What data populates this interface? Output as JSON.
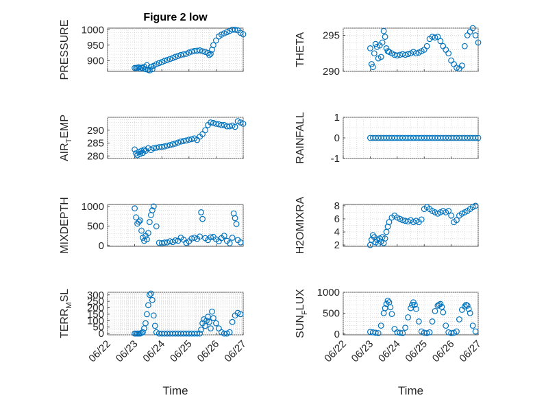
{
  "figure": {
    "title": "Figure 2 low",
    "marker_color": "#0072BD"
  },
  "chart_data": [
    {
      "type": "scatter",
      "ylabel": "PRESSURE",
      "title": "Figure 2 low",
      "xlim": [
        22,
        27
      ],
      "ylim": [
        865,
        1005
      ],
      "yticks": [
        900,
        950,
        1000
      ],
      "x": [
        23.0,
        23.05,
        23.1,
        23.15,
        23.2,
        23.25,
        23.3,
        23.35,
        23.4,
        23.45,
        23.5,
        23.55,
        23.6,
        23.65,
        23.7,
        23.8,
        23.9,
        24.0,
        24.1,
        24.2,
        24.3,
        24.4,
        24.5,
        24.6,
        24.7,
        24.8,
        24.9,
        25.0,
        25.1,
        25.2,
        25.3,
        25.4,
        25.5,
        25.6,
        25.7,
        25.75,
        25.8,
        25.85,
        25.9,
        26.0,
        26.1,
        26.2,
        26.3,
        26.4,
        26.5,
        26.6,
        26.7,
        26.8,
        26.9,
        27.0
      ],
      "values": [
        876,
        876,
        877,
        878,
        874,
        877,
        876,
        880,
        872,
        885,
        870,
        868,
        880,
        872,
        883,
        888,
        892,
        895,
        899,
        902,
        905,
        908,
        912,
        915,
        918,
        920,
        922,
        926,
        929,
        931,
        932,
        933,
        930,
        928,
        925,
        918,
        922,
        935,
        950,
        965,
        978,
        984,
        988,
        992,
        996,
        1000,
        1000,
        998,
        990,
        985
      ]
    },
    {
      "type": "scatter",
      "ylabel": "THETA",
      "xlim": [
        22,
        27
      ],
      "ylim": [
        290,
        296
      ],
      "yticks": [
        290,
        295
      ],
      "x": [
        23.0,
        23.05,
        23.1,
        23.15,
        23.2,
        23.25,
        23.3,
        23.35,
        23.4,
        23.45,
        23.5,
        23.55,
        23.6,
        23.65,
        23.7,
        23.8,
        23.9,
        24.0,
        24.1,
        24.2,
        24.3,
        24.4,
        24.5,
        24.6,
        24.7,
        24.8,
        24.9,
        25.0,
        25.1,
        25.2,
        25.3,
        25.4,
        25.5,
        25.6,
        25.7,
        25.8,
        25.9,
        26.0,
        26.1,
        26.2,
        26.3,
        26.4,
        26.5,
        26.6,
        26.7,
        26.8,
        26.9,
        27.0
      ],
      "values": [
        293.2,
        291.0,
        290.6,
        292.5,
        293.8,
        293.4,
        291.8,
        293.6,
        292.0,
        294.0,
        295.6,
        294.8,
        293.2,
        292.8,
        292.7,
        292.5,
        292.3,
        292.2,
        292.3,
        292.4,
        292.3,
        292.4,
        292.5,
        292.7,
        292.5,
        292.6,
        292.8,
        293.0,
        293.5,
        294.5,
        294.8,
        294.7,
        294.8,
        294.2,
        293.5,
        293.0,
        292.5,
        291.5,
        291.0,
        290.5,
        290.4,
        290.8,
        293.5,
        295.0,
        295.5,
        296.0,
        295.0,
        294.0
      ]
    },
    {
      "type": "scatter",
      "ylabel": "AIR_TEMP",
      "xlim": [
        22,
        27
      ],
      "ylim": [
        279,
        295
      ],
      "yticks": [
        280,
        285,
        290
      ],
      "x": [
        23.0,
        23.05,
        23.1,
        23.15,
        23.2,
        23.25,
        23.3,
        23.35,
        23.4,
        23.5,
        23.6,
        23.7,
        23.8,
        23.9,
        24.0,
        24.1,
        24.2,
        24.3,
        24.4,
        24.5,
        24.6,
        24.7,
        24.8,
        24.9,
        25.0,
        25.1,
        25.2,
        25.3,
        25.4,
        25.5,
        25.6,
        25.7,
        25.8,
        25.9,
        26.0,
        26.1,
        26.2,
        26.3,
        26.4,
        26.5,
        26.6,
        26.7,
        26.8,
        26.9,
        27.0
      ],
      "values": [
        282.5,
        281.0,
        280.3,
        281.5,
        280.8,
        282.0,
        281.2,
        282.5,
        282.0,
        283.0,
        282.3,
        283.0,
        283.2,
        283.4,
        283.5,
        283.7,
        284.0,
        284.2,
        284.5,
        284.8,
        285.2,
        285.6,
        285.8,
        286.0,
        286.3,
        286.5,
        286.8,
        286.2,
        287.5,
        288.5,
        290.0,
        292.0,
        293.0,
        292.8,
        292.5,
        292.3,
        292.0,
        292.0,
        291.5,
        291.5,
        291.8,
        291.3,
        293.5,
        293.0,
        292.5
      ]
    },
    {
      "type": "scatter",
      "ylabel": "RAINFALL",
      "xlim": [
        22,
        27
      ],
      "ylim": [
        -1,
        1
      ],
      "yticks": [
        -1,
        0,
        1
      ],
      "x": [
        23.0,
        23.1,
        23.2,
        23.3,
        23.4,
        23.5,
        23.6,
        23.7,
        23.8,
        23.9,
        24.0,
        24.1,
        24.2,
        24.3,
        24.4,
        24.5,
        24.6,
        24.7,
        24.8,
        24.9,
        25.0,
        25.1,
        25.2,
        25.3,
        25.4,
        25.5,
        25.6,
        25.7,
        25.8,
        25.9,
        26.0,
        26.1,
        26.2,
        26.3,
        26.4,
        26.5,
        26.6,
        26.7,
        26.8,
        26.9,
        27.0
      ],
      "values": [
        0,
        0,
        0,
        0,
        0,
        0,
        0,
        0,
        0,
        0,
        0,
        0,
        0,
        0,
        0,
        0,
        0,
        0,
        0,
        0,
        0,
        0,
        0,
        0,
        0,
        0,
        0,
        0,
        0,
        0,
        0,
        0,
        0,
        0,
        0,
        0,
        0,
        0,
        0,
        0,
        0
      ]
    },
    {
      "type": "scatter",
      "ylabel": "MIXDEPTH",
      "xlim": [
        22,
        27
      ],
      "ylim": [
        -20,
        1050
      ],
      "yticks": [
        0,
        500,
        1000
      ],
      "x": [
        23.0,
        23.05,
        23.1,
        23.15,
        23.2,
        23.25,
        23.3,
        23.35,
        23.4,
        23.45,
        23.5,
        23.55,
        23.6,
        23.65,
        23.7,
        23.8,
        23.9,
        24.0,
        24.1,
        24.2,
        24.3,
        24.4,
        24.5,
        24.6,
        24.7,
        24.8,
        24.9,
        25.0,
        25.1,
        25.2,
        25.3,
        25.4,
        25.45,
        25.5,
        25.6,
        25.7,
        25.8,
        25.9,
        26.0,
        26.1,
        26.2,
        26.3,
        26.4,
        26.5,
        26.6,
        26.65,
        26.7,
        26.75,
        26.8,
        26.9
      ],
      "values": [
        950,
        720,
        560,
        610,
        640,
        380,
        200,
        120,
        250,
        160,
        320,
        600,
        780,
        900,
        1000,
        490,
        70,
        60,
        75,
        80,
        110,
        90,
        130,
        120,
        200,
        150,
        70,
        110,
        180,
        200,
        170,
        230,
        850,
        680,
        190,
        140,
        210,
        220,
        160,
        110,
        190,
        250,
        120,
        60,
        200,
        820,
        700,
        550,
        140,
        80
      ]
    },
    {
      "type": "scatter",
      "ylabel": "H2OMIXRA",
      "xlim": [
        22,
        27
      ],
      "ylim": [
        1.8,
        8.2
      ],
      "yticks": [
        2,
        4,
        6,
        8
      ],
      "x": [
        23.0,
        23.05,
        23.1,
        23.15,
        23.2,
        23.25,
        23.3,
        23.35,
        23.4,
        23.45,
        23.5,
        23.55,
        23.6,
        23.65,
        23.7,
        23.8,
        23.9,
        24.0,
        24.1,
        24.2,
        24.3,
        24.4,
        24.5,
        24.6,
        24.7,
        24.8,
        24.9,
        25.0,
        25.1,
        25.2,
        25.3,
        25.4,
        25.5,
        25.6,
        25.7,
        25.8,
        25.9,
        26.0,
        26.1,
        26.2,
        26.3,
        26.4,
        26.5,
        26.6,
        26.7,
        26.8,
        26.9
      ],
      "values": [
        2.0,
        2.8,
        3.5,
        3.2,
        2.4,
        2.8,
        2.2,
        3.0,
        2.5,
        3.2,
        2.3,
        3.0,
        4.0,
        4.8,
        5.5,
        6.2,
        6.5,
        6.2,
        6.0,
        5.8,
        5.7,
        5.6,
        5.8,
        5.5,
        5.7,
        5.5,
        5.9,
        7.5,
        7.8,
        7.5,
        7.2,
        7.0,
        6.8,
        7.0,
        7.2,
        7.0,
        7.2,
        6.5,
        5.5,
        5.8,
        6.5,
        6.8,
        7.0,
        7.2,
        7.5,
        7.8,
        8.0
      ]
    },
    {
      "type": "scatter",
      "ylabel": "TERR_MSL",
      "xlim": [
        22,
        27
      ],
      "ylim": [
        -10,
        320
      ],
      "yticks": [
        0,
        50,
        100,
        150,
        200,
        250,
        300
      ],
      "x": [
        23.0,
        23.05,
        23.1,
        23.15,
        23.2,
        23.25,
        23.3,
        23.35,
        23.4,
        23.45,
        23.5,
        23.55,
        23.6,
        23.65,
        23.7,
        23.75,
        23.8,
        23.9,
        24.0,
        24.1,
        24.2,
        24.3,
        24.4,
        24.5,
        24.6,
        24.7,
        24.8,
        24.9,
        25.0,
        25.1,
        25.2,
        25.3,
        25.4,
        25.45,
        25.5,
        25.55,
        25.6,
        25.65,
        25.7,
        25.75,
        25.8,
        25.85,
        25.9,
        26.0,
        26.1,
        26.2,
        26.3,
        26.4,
        26.5,
        26.6,
        26.7,
        26.8,
        26.9
      ],
      "values": [
        0,
        0,
        0,
        0,
        0,
        5,
        10,
        40,
        80,
        150,
        220,
        300,
        310,
        260,
        140,
        60,
        10,
        0,
        0,
        0,
        0,
        0,
        0,
        0,
        0,
        0,
        0,
        0,
        0,
        0,
        0,
        0,
        0,
        30,
        80,
        110,
        60,
        100,
        130,
        90,
        40,
        170,
        120,
        80,
        40,
        10,
        0,
        0,
        10,
        90,
        140,
        160,
        150
      ]
    },
    {
      "type": "scatter",
      "ylabel": "SUN_FLUX",
      "xlim": [
        22,
        27
      ],
      "ylim": [
        -20,
        1000
      ],
      "yticks": [
        0,
        500,
        1000
      ],
      "x": [
        23.0,
        23.1,
        23.2,
        23.3,
        23.4,
        23.5,
        23.55,
        23.6,
        23.65,
        23.7,
        23.75,
        23.8,
        23.9,
        24.0,
        24.1,
        24.2,
        24.3,
        24.4,
        24.5,
        24.55,
        24.6,
        24.65,
        24.7,
        24.8,
        24.9,
        25.0,
        25.1,
        25.2,
        25.3,
        25.4,
        25.5,
        25.55,
        25.6,
        25.65,
        25.7,
        25.8,
        25.9,
        26.0,
        26.1,
        26.2,
        26.3,
        26.4,
        26.5,
        26.55,
        26.6,
        26.65,
        26.7,
        26.8,
        26.9
      ],
      "values": [
        50,
        40,
        30,
        20,
        200,
        500,
        620,
        720,
        800,
        760,
        640,
        480,
        120,
        40,
        30,
        20,
        150,
        400,
        620,
        700,
        760,
        700,
        600,
        300,
        60,
        30,
        20,
        40,
        300,
        550,
        680,
        700,
        720,
        650,
        520,
        200,
        40,
        20,
        30,
        60,
        350,
        580,
        660,
        700,
        680,
        600,
        500,
        200,
        60
      ]
    }
  ],
  "x_axis": {
    "ticklabels": [
      "06/22",
      "06/23",
      "06/24",
      "06/25",
      "06/26",
      "06/27"
    ],
    "label": "Time"
  }
}
